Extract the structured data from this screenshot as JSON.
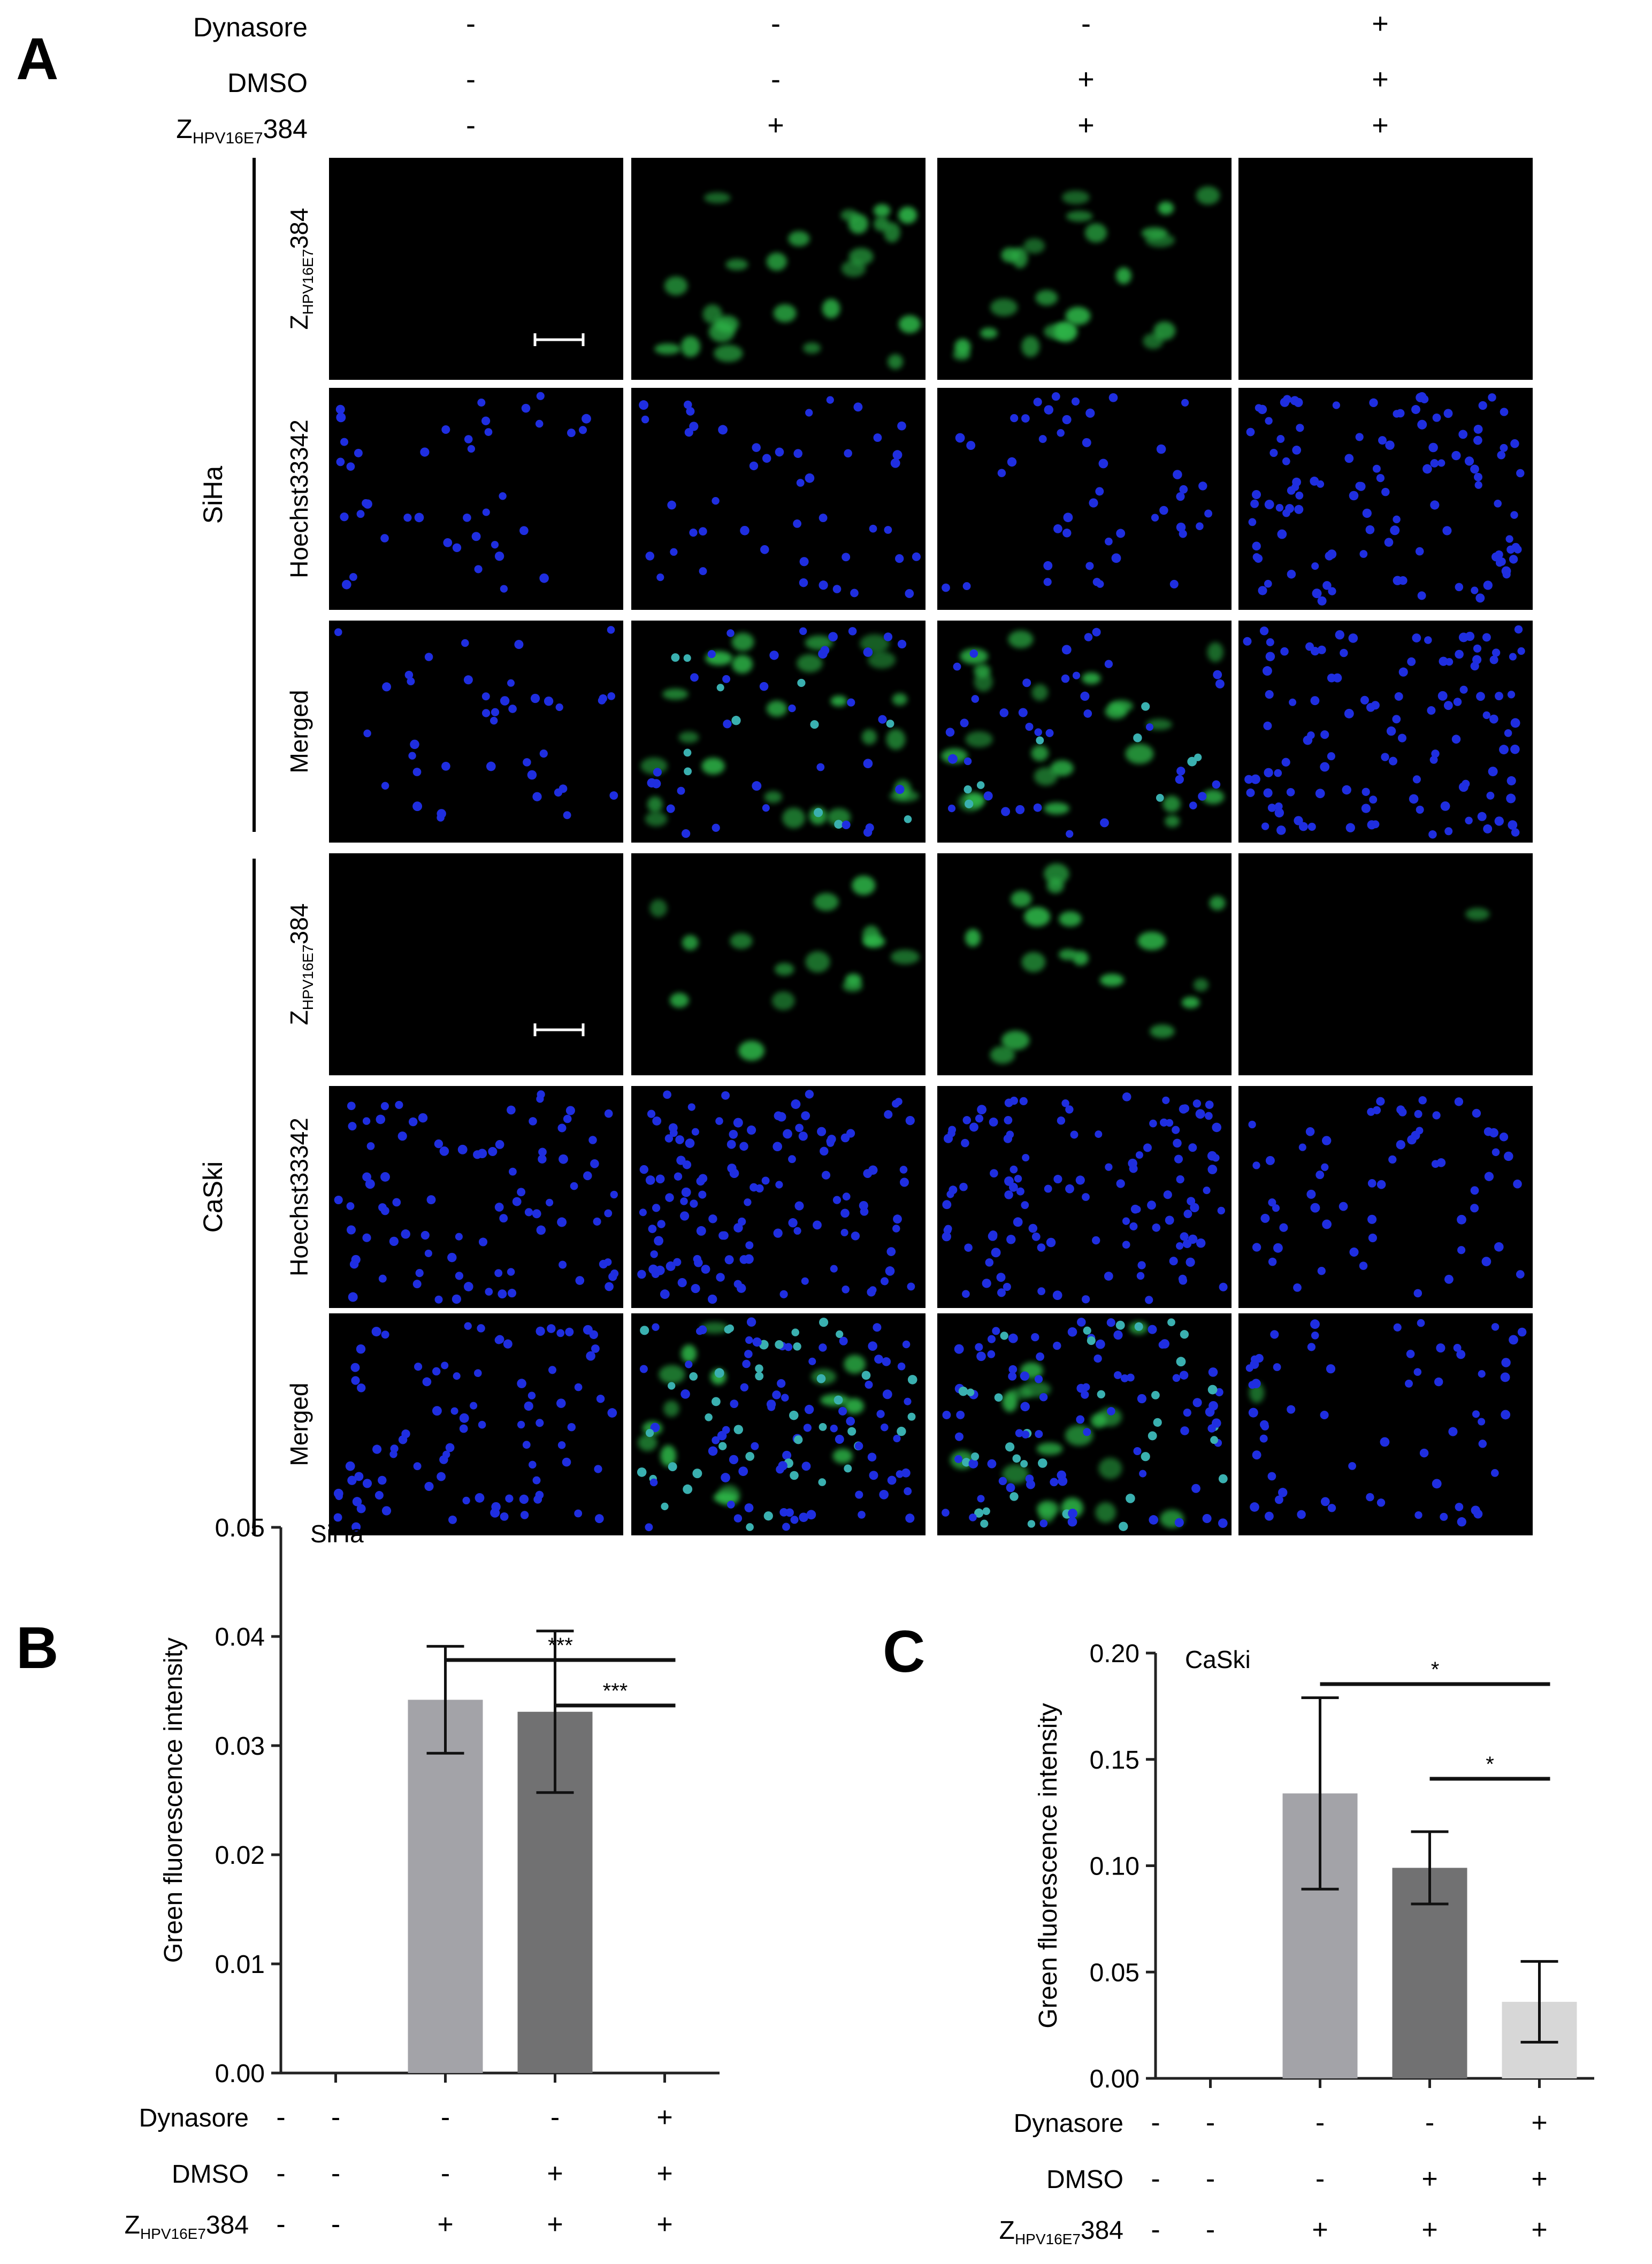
{
  "panel_letters": [
    "A",
    "B",
    "C"
  ],
  "conditions": {
    "row_labels": [
      "Dynasore",
      "DMSO",
      "Z",
      "HPV16E7",
      "384"
    ],
    "columns": [
      [
        "-",
        "-",
        "-"
      ],
      [
        "-",
        "-",
        "+"
      ],
      [
        "-",
        "+",
        "+"
      ],
      [
        "+",
        "+",
        "+"
      ]
    ]
  },
  "micrograph": {
    "groups": [
      {
        "label": "SiHa",
        "rows": [
          {
            "label_main": "Z",
            "label_sub": "HPV16E7",
            "label_tail": "384",
            "channel": "green"
          },
          {
            "label_main": "Hoechst33342",
            "label_sub": "",
            "label_tail": "",
            "channel": "blue"
          },
          {
            "label_main": "Merged",
            "label_sub": "",
            "label_tail": "",
            "channel": "merged"
          }
        ]
      },
      {
        "label": "CaSki",
        "rows": [
          {
            "label_main": "Z",
            "label_sub": "HPV16E7",
            "label_tail": "384",
            "channel": "green"
          },
          {
            "label_main": "Hoechst33342",
            "label_sub": "",
            "label_tail": "",
            "channel": "blue"
          },
          {
            "label_main": "Merged",
            "label_sub": "",
            "label_tail": "",
            "channel": "merged"
          }
        ]
      }
    ],
    "green_level": [
      [
        0,
        0.85,
        0.8,
        0
      ],
      [
        0,
        0.55,
        0.6,
        0.02
      ]
    ],
    "colors": {
      "background": "#000000",
      "nuclei": "#1f2ee0",
      "green": "#2fb84a",
      "merged_nuclei": "#3ab0b0"
    }
  },
  "chart_data": [
    {
      "type": "bar",
      "title": "SiHa",
      "ylabel": "Green fluorescence intensity",
      "ylim": [
        0,
        0.05
      ],
      "yticks": [
        "0.00",
        "0.01",
        "0.02",
        "0.03",
        "0.04",
        "0.05"
      ],
      "values": [
        0,
        0.0342,
        0.0331,
        0
      ],
      "errors": [
        0,
        0.0049,
        0.0074,
        0
      ],
      "bar_colors": [
        "#a3a3a8",
        "#a3a3a8",
        "#717172",
        "#d7d7d7"
      ],
      "significance": [
        {
          "from": 1,
          "to": 3,
          "label": "***"
        },
        {
          "from": 2,
          "to": 3,
          "label": "***"
        }
      ]
    },
    {
      "type": "bar",
      "title": "CaSki",
      "ylabel": "Green fluorescence intensity",
      "ylim": [
        0,
        0.2
      ],
      "yticks": [
        "0.00",
        "0.05",
        "0.10",
        "0.15",
        "0.20"
      ],
      "values": [
        0,
        0.134,
        0.099,
        0.036
      ],
      "errors": [
        0,
        0.045,
        0.017,
        0.019
      ],
      "bar_colors": [
        "#a3a3a8",
        "#a3a3a8",
        "#717172",
        "#d7d7d7"
      ],
      "significance": [
        {
          "from": 1,
          "to": 3,
          "label": "*"
        },
        {
          "from": 2,
          "to": 3,
          "label": "*"
        }
      ]
    }
  ]
}
